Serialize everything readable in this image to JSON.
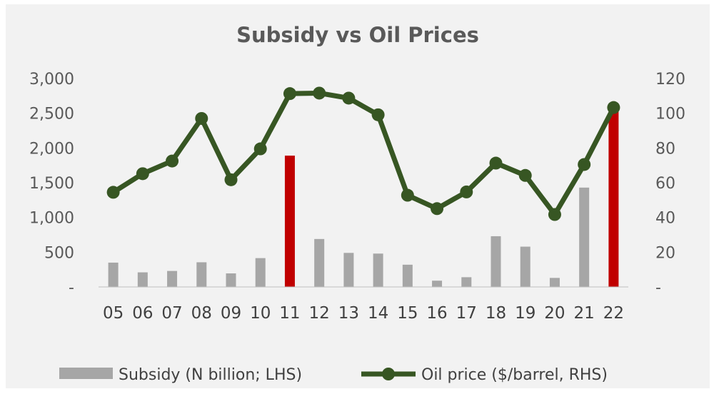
{
  "chart_data": {
    "type": "bar",
    "title": "Subsidy vs Oil Prices",
    "categories": [
      "05",
      "06",
      "07",
      "08",
      "09",
      "10",
      "11",
      "12",
      "13",
      "14",
      "15",
      "16",
      "17",
      "18",
      "19",
      "20",
      "21",
      "22"
    ],
    "left_axis": {
      "ylim": [
        0,
        3000
      ],
      "ticks": [
        "-",
        "500",
        "1,000",
        "1,500",
        "2,000",
        "2,500",
        "3,000"
      ],
      "tick_values": [
        0,
        500,
        1000,
        1500,
        2000,
        2500,
        3000
      ]
    },
    "right_axis": {
      "ylim": [
        0,
        120
      ],
      "ticks": [
        "-",
        "20",
        "40",
        "60",
        "80",
        "100",
        "120"
      ],
      "tick_values": [
        0,
        20,
        40,
        60,
        80,
        100,
        120
      ]
    },
    "series": [
      {
        "name": "Subsidy (N billion; LHS)",
        "type": "bar",
        "axis": "left",
        "color": "#a6a6a6",
        "highlight_color": "#c00000",
        "highlight_categories": [
          "11",
          "22"
        ],
        "values": [
          350,
          210,
          230,
          355,
          195,
          415,
          1890,
          690,
          490,
          480,
          320,
          90,
          140,
          730,
          580,
          130,
          1430,
          2560
        ]
      },
      {
        "name": "Oil price ($/barrel, RHS)",
        "type": "line",
        "axis": "right",
        "color": "#375623",
        "values": [
          54.5,
          65.2,
          72.5,
          97.0,
          61.7,
          79.5,
          111.3,
          111.6,
          108.7,
          99.1,
          52.8,
          45.1,
          54.7,
          71.3,
          64.2,
          41.7,
          70.5,
          103.3
        ]
      }
    ],
    "legend_position": "bottom",
    "grid": false
  }
}
